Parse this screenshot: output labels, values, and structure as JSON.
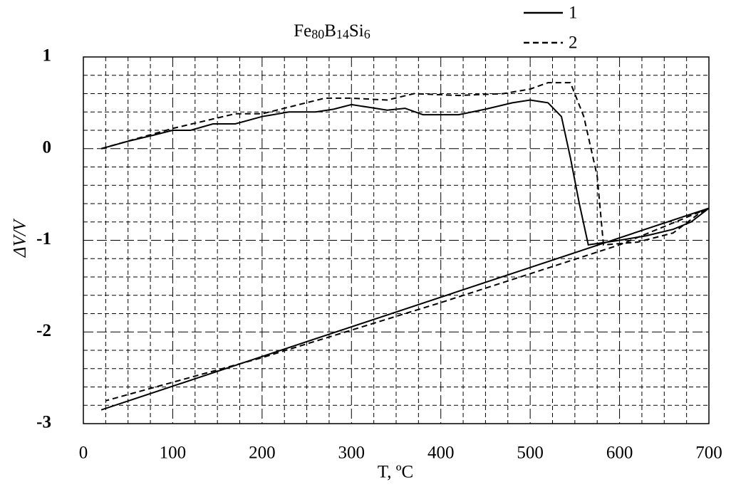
{
  "chart_data": {
    "type": "line",
    "title": [
      "Fe",
      "80",
      "B",
      "14",
      "Si",
      "6"
    ],
    "xlabel": "T, ºC",
    "ylabel": "ΔV/V",
    "xlim": [
      0,
      700
    ],
    "xticks": [
      0,
      100,
      200,
      300,
      400,
      500,
      600,
      700
    ],
    "ylim": [
      -3,
      1
    ],
    "yticks": [
      -3,
      -2,
      -1,
      0,
      1
    ],
    "grid": true,
    "legend": "top right",
    "series": [
      {
        "name": "1",
        "color": "#000000",
        "dash": "solid",
        "x": [
          20,
          50,
          80,
          100,
          120,
          145,
          170,
          200,
          230,
          260,
          280,
          300,
          320,
          340,
          360,
          380,
          420,
          450,
          480,
          500,
          520,
          535,
          545,
          555,
          565,
          600,
          630,
          660,
          680,
          700,
          20
        ],
        "values": [
          0,
          0.08,
          0.15,
          0.2,
          0.2,
          0.27,
          0.27,
          0.35,
          0.4,
          0.4,
          0.43,
          0.48,
          0.45,
          0.42,
          0.44,
          0.37,
          0.37,
          0.43,
          0.5,
          0.53,
          0.5,
          0.35,
          -0.1,
          -0.6,
          -1.05,
          -1.0,
          -0.95,
          -0.88,
          -0.8,
          -0.65,
          -2.85
        ]
      },
      {
        "name": "2",
        "color": "#000000",
        "dash": "dashed",
        "x": [
          20,
          100,
          170,
          200,
          270,
          300,
          340,
          370,
          420,
          470,
          500,
          520,
          545,
          560,
          575,
          582,
          620,
          660,
          690,
          700,
          600,
          400,
          200,
          25
        ],
        "values": [
          0,
          0.22,
          0.38,
          0.38,
          0.55,
          0.55,
          0.53,
          0.6,
          0.58,
          0.6,
          0.65,
          0.72,
          0.72,
          0.35,
          -0.3,
          -1.05,
          -1.02,
          -0.92,
          -0.7,
          -0.65,
          -1.05,
          -1.68,
          -2.28,
          -2.75
        ]
      }
    ]
  }
}
